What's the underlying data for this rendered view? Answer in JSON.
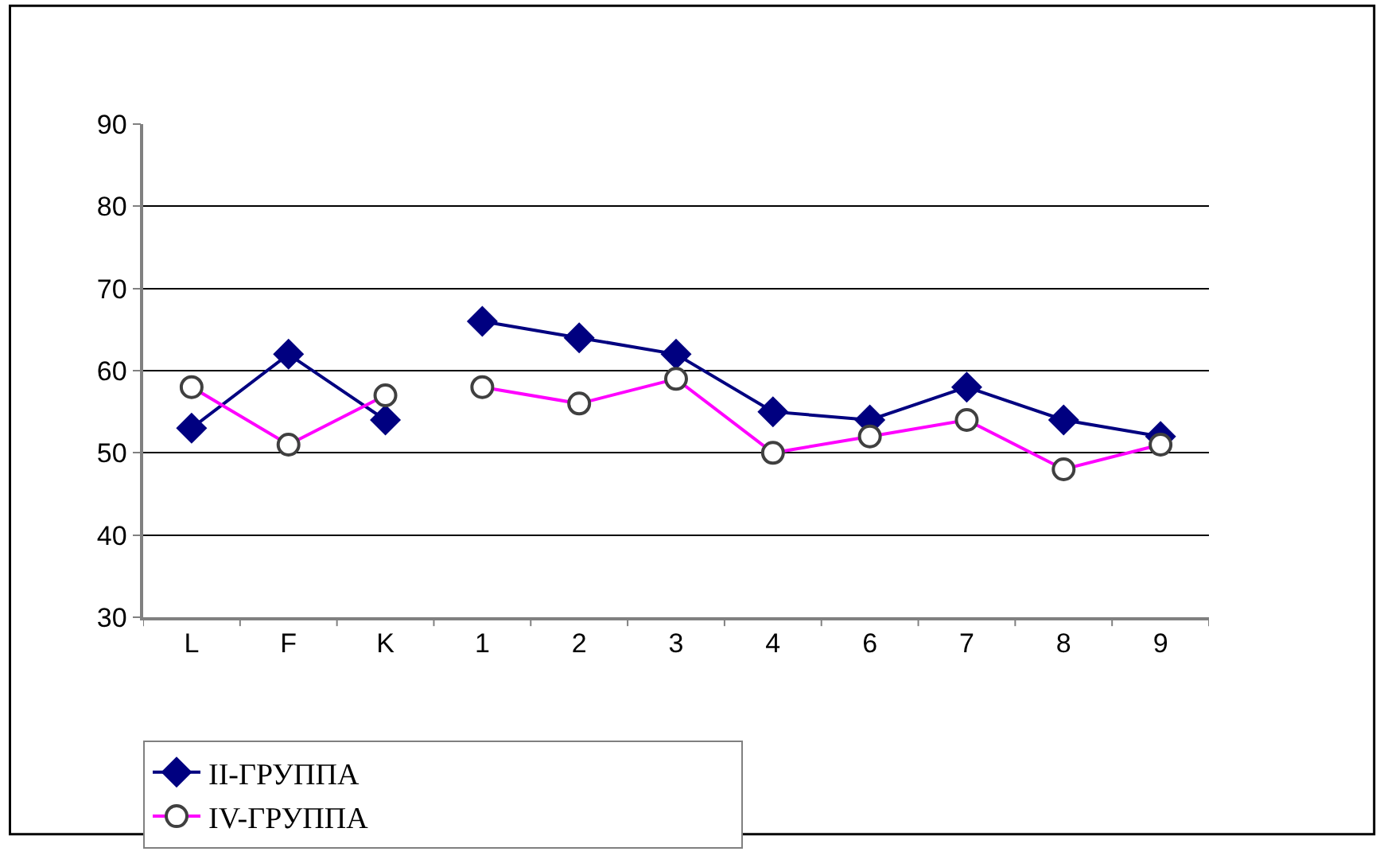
{
  "chart_data": {
    "type": "line",
    "categories": [
      "L",
      "F",
      "K",
      "1",
      "2",
      "3",
      "4",
      "6",
      "7",
      "8",
      "9"
    ],
    "series": [
      {
        "name": "II-ГРУППА",
        "color": "#000080",
        "marker": "diamond",
        "values": [
          53,
          62,
          54,
          66,
          64,
          62,
          55,
          54,
          58,
          54,
          52
        ]
      },
      {
        "name": "IV-ГРУППА",
        "color": "#ff00ff",
        "marker": "circle",
        "values": [
          58,
          51,
          57,
          58,
          56,
          59,
          50,
          52,
          54,
          48,
          51
        ]
      }
    ],
    "ylim": [
      30,
      90
    ],
    "yticks": [
      30,
      40,
      50,
      60,
      70,
      80,
      90
    ],
    "grid": "y",
    "legend": "bottom",
    "line_style": "solid"
  }
}
